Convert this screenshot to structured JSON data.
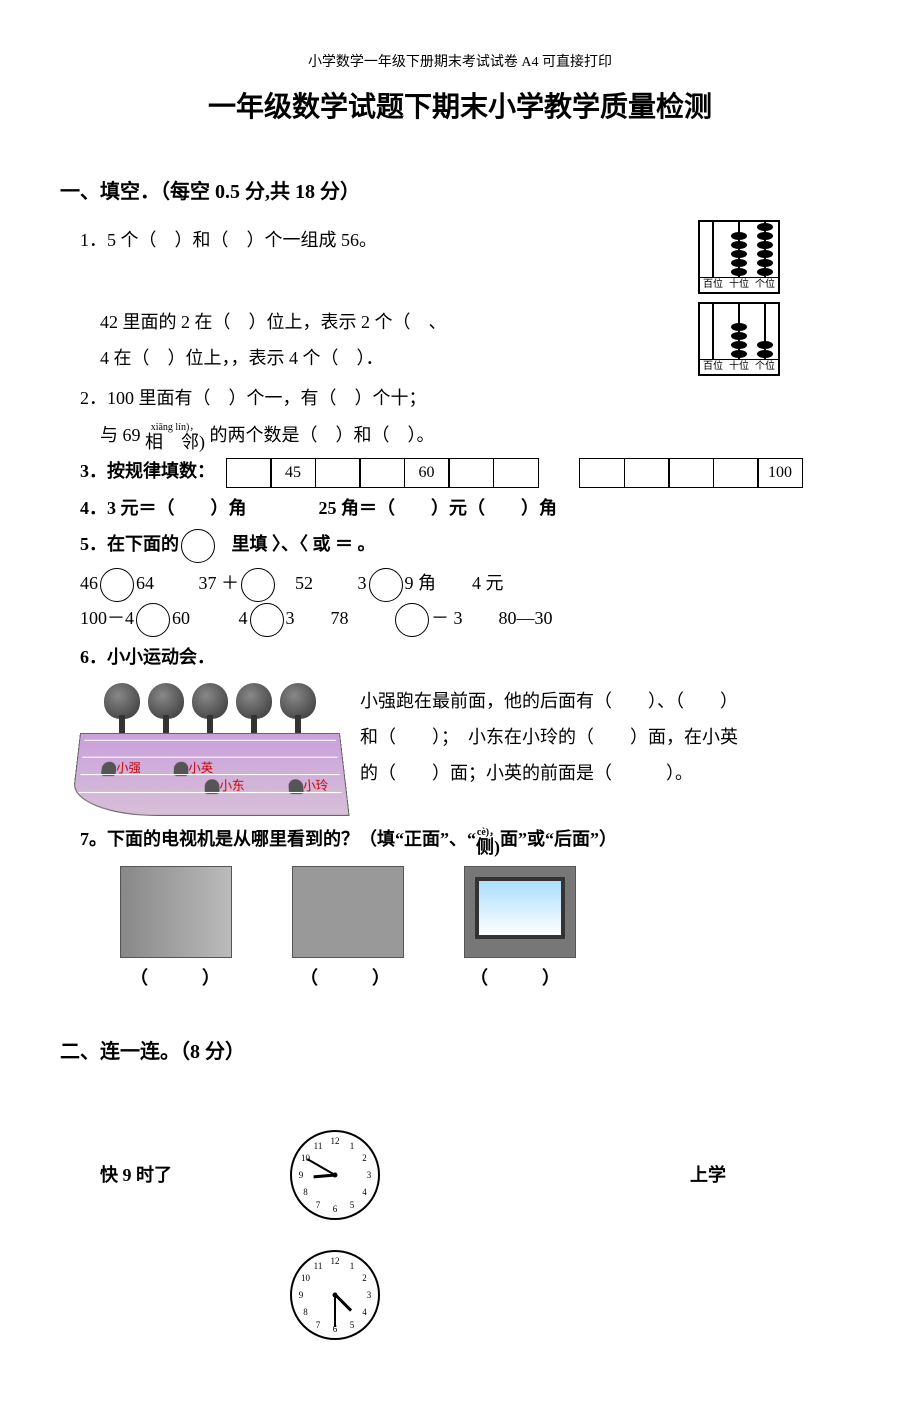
{
  "header_small": "小学数学一年级下册期末考试试卷 A4 可直接打印",
  "title": "一年级数学试题下期末小学教学质量检测",
  "section1": {
    "heading": "一、填空．（每空 0.5 分,共 18 分）",
    "q1": "1．5 个（　）和（　）个一组成 56。",
    "q1b_a": "42 里面的 2 在（　）位上，表示 2 个（　、",
    "q1b_b": "4 在（　）位上，，表示 4 个（　）．",
    "q2": "2．100 里面有（　）个一，有（　）个十；",
    "q2b_pre": "与 69",
    "q2b_ruby_top": "xiāng lín)，",
    "q2b_ruby_base": "相　邻)",
    "q2b_post": "的两个数是（　）和（　）。",
    "q3_label": "3．按规律填数：",
    "q3_boxes1": [
      "",
      "45",
      "",
      "",
      "60",
      "",
      ""
    ],
    "q3_boxes2": [
      "",
      "",
      "",
      "",
      "100"
    ],
    "q4": "4．3 元＝（　　）角　　　　25 角＝（　　）元（　　）角",
    "q5_head": "5．在下面的",
    "q5_head2": "里填 〉、〈 或 ＝ 。",
    "q5_row1": [
      "46",
      "64",
      "37 ＋",
      "52",
      "3",
      "9 角",
      "4 元"
    ],
    "q5_row2": [
      "100－4",
      "60",
      "4",
      "3",
      "78",
      "－ 3",
      "80—30"
    ],
    "q6_head": "6．小小运动会．",
    "q6_text_a": "小强跑在最前面，他的后面有（　　）、（　　）",
    "q6_text_b": "和（　　）；　小东在小玲的（　　）面，在小英",
    "q6_text_c": "的（　　）面；小英的前面是（　　　）。",
    "q6_names": {
      "a": "小强",
      "b": "小英",
      "c": "小东",
      "d": "小玲"
    },
    "q7_pre": "7。下面的电视机是从哪里看到的？（填“正面”、“",
    "q7_ruby_top": "cè)，",
    "q7_ruby_base": "侧)",
    "q7_post": "面”或“后面”）",
    "q7_blank": "（　　　）"
  },
  "section2": {
    "heading": "二、连一连。（8 分）",
    "clock1_label": "快 9 时了",
    "clock1_right": "上学",
    "clocks": [
      {
        "hour_angle": 265,
        "min_angle": 300
      },
      {
        "hour_angle": 135,
        "min_angle": 180
      }
    ]
  },
  "abacus": {
    "labels": [
      "百位",
      "十位",
      "个位"
    ],
    "beads1": [
      0,
      5,
      6
    ],
    "beads2": [
      0,
      4,
      2
    ]
  }
}
